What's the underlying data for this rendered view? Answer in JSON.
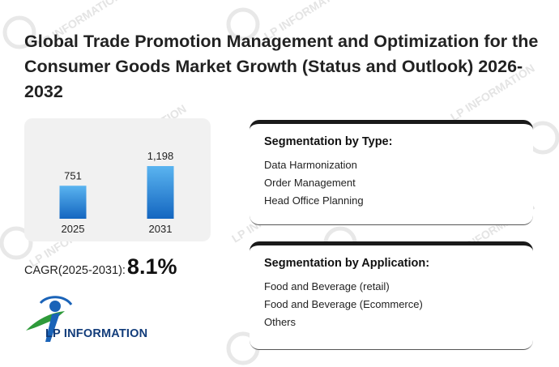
{
  "title": "Global Trade Promotion Management and Optimization for the Consumer Goods Market Growth (Status and Outlook) 2026-2032",
  "chart_data": {
    "type": "bar",
    "categories": [
      "2025",
      "2031"
    ],
    "values": [
      751,
      1198
    ],
    "value_labels": [
      "751",
      "1,198"
    ],
    "bar_color_top": "#5ab4f0",
    "bar_color_bottom": "#1466c0"
  },
  "cagr": {
    "label": "CAGR(2025-2031):",
    "value": "8.1%"
  },
  "segmentation_type": {
    "heading": "Segmentation by Type:",
    "items": [
      "Data Harmonization",
      "Order Management",
      "Head Office Planning"
    ]
  },
  "segmentation_application": {
    "heading": "Segmentation by Application:",
    "items": [
      "Food and Beverage (retail)",
      "Food and Beverage (Ecommerce)",
      "Others"
    ]
  },
  "logo": {
    "text": "LP INFORMATION"
  },
  "watermark": {
    "text": "LP INFORMATION"
  }
}
